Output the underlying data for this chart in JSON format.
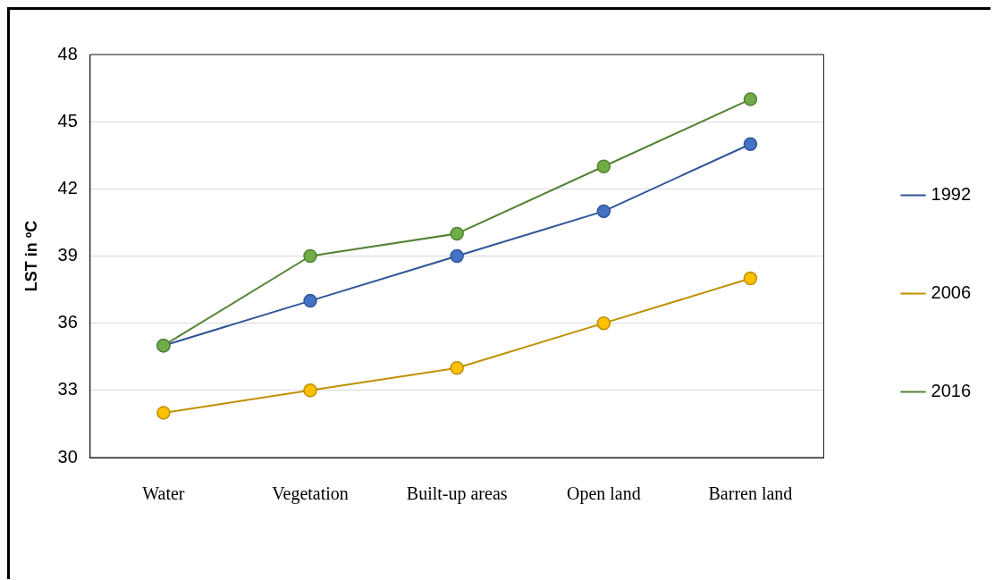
{
  "chart_data": {
    "type": "line",
    "ylabel": "LST in ºC",
    "categories": [
      "Water",
      "Vegetation",
      "Built-up areas",
      "Open land",
      "Barren land"
    ],
    "series": [
      {
        "name": "1992",
        "color": "#2f5597",
        "values": [
          35,
          37,
          39,
          41,
          44
        ]
      },
      {
        "name": "2006",
        "color": "#bf9000",
        "values": [
          32,
          33,
          34,
          36,
          38
        ]
      },
      {
        "name": "2016",
        "color": "#548235",
        "values": [
          35,
          39,
          40,
          43,
          46
        ]
      }
    ],
    "ylim": [
      30,
      48
    ],
    "yticks": [
      30,
      33,
      36,
      39,
      42,
      45,
      48
    ],
    "grid": "y",
    "legend": "right",
    "marker": "circle",
    "line_style": "solid"
  }
}
